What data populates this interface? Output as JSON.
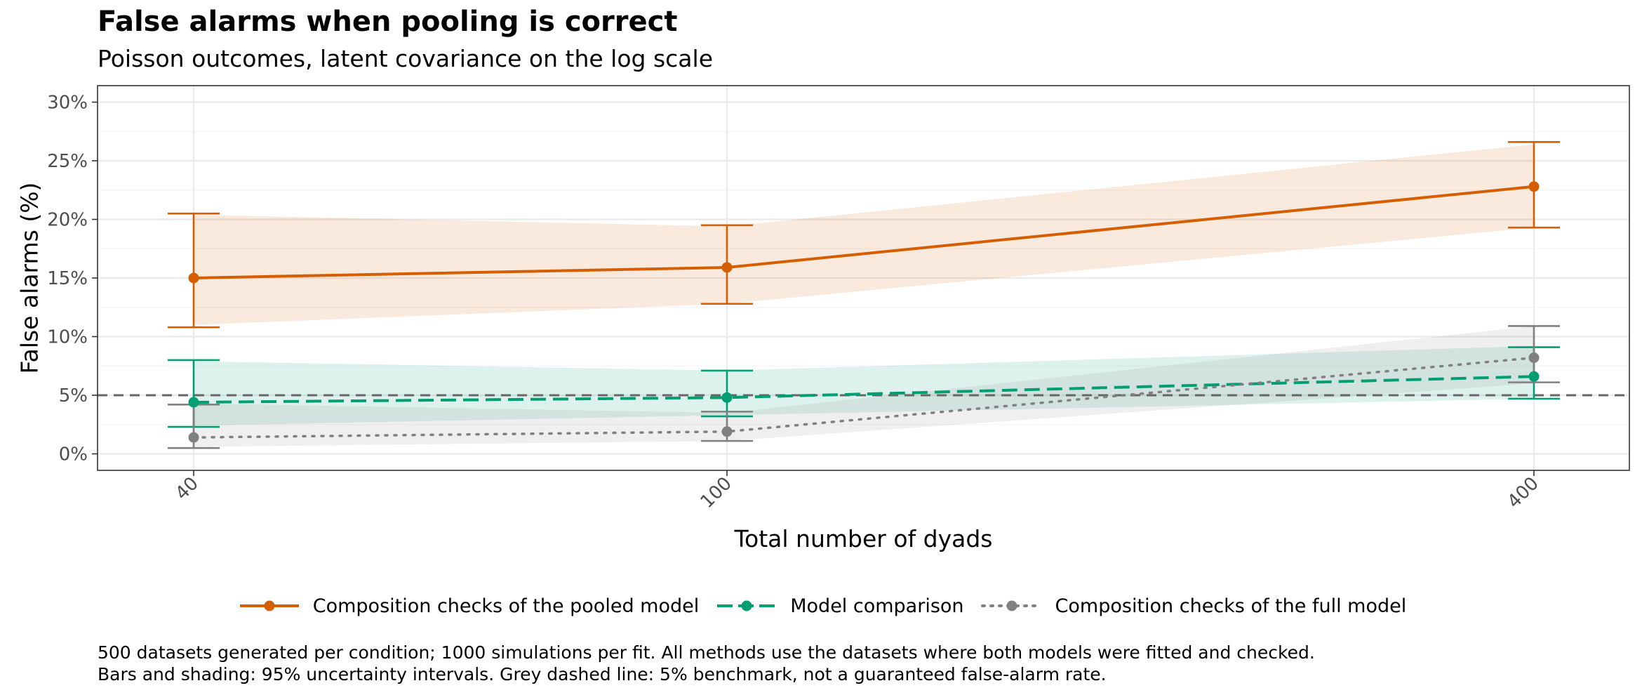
{
  "title": "False alarms when pooling is correct",
  "subtitle": "Poisson outcomes, latent covariance on the log scale",
  "caption": [
    "500 datasets generated per condition; 1000 simulations per fit. All methods use the datasets where both models were fitted and checked.",
    "Bars and shading: 95% uncertainty intervals. Grey dashed line: 5% benchmark, not a guaranteed false-alarm rate."
  ],
  "colors": {
    "pooled": "#D55E00",
    "comparison": "#009E73",
    "full": "#808080",
    "benchmark": "#666666"
  },
  "chart_data": {
    "type": "line",
    "xlabel": "Total number of dyads",
    "ylabel": "False alarms (%)",
    "x": [
      40,
      100,
      400
    ],
    "xticks": [
      "40",
      "100",
      "400"
    ],
    "ylim": [
      0,
      30
    ],
    "yticks": [
      "0%",
      "5%",
      "10%",
      "15%",
      "20%",
      "25%",
      "30%"
    ],
    "grid": true,
    "legend_position": "bottom",
    "reference_line": {
      "y": 5,
      "style": "dashed"
    },
    "series": [
      {
        "name": "Composition checks of the pooled model",
        "key": "pooled",
        "style": "solid",
        "values": [
          15.0,
          15.9,
          22.8
        ],
        "lower": [
          10.8,
          12.8,
          19.3
        ],
        "upper": [
          20.5,
          19.5,
          26.6
        ],
        "band_lower": [
          11.0,
          12.8,
          19.3
        ],
        "band_upper": [
          20.4,
          19.4,
          26.4
        ]
      },
      {
        "name": "Model comparison",
        "key": "comparison",
        "style": "dashed",
        "values": [
          4.4,
          4.8,
          6.6
        ],
        "lower": [
          2.3,
          3.2,
          4.7
        ],
        "upper": [
          8.0,
          7.1,
          9.1
        ],
        "band_lower": [
          2.4,
          3.3,
          4.7
        ],
        "band_upper": [
          7.9,
          7.1,
          9.2
        ]
      },
      {
        "name": "Composition checks of the full model",
        "key": "full",
        "style": "dotted",
        "values": [
          1.4,
          1.9,
          8.2
        ],
        "lower": [
          0.5,
          1.1,
          6.1
        ],
        "upper": [
          4.2,
          3.6,
          10.9
        ],
        "band_lower": [
          0.6,
          1.1,
          6.0
        ],
        "band_upper": [
          4.3,
          3.5,
          10.9
        ]
      }
    ]
  }
}
